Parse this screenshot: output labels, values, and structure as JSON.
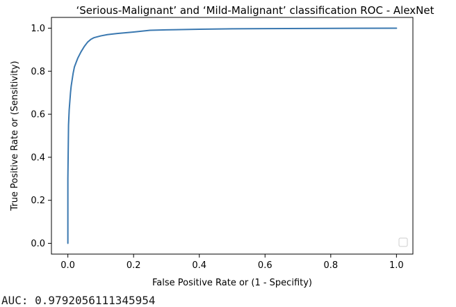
{
  "chart_data": {
    "type": "line",
    "title": "‘Serious-Malignant’ and ‘Mild-Malignant’ classification ROC - AlexNet",
    "xlabel": "False Positive Rate or (1 - Specifity)",
    "ylabel": "True Positive Rate or (Sensitivity)",
    "xlim": [
      -0.05,
      1.05
    ],
    "ylim": [
      -0.05,
      1.05
    ],
    "xticks": [
      "0.0",
      "0.2",
      "0.4",
      "0.6",
      "0.8",
      "1.0"
    ],
    "yticks": [
      "0.0",
      "0.2",
      "0.4",
      "0.6",
      "0.8",
      "1.0"
    ],
    "grid": false,
    "legend": "lower-right (empty)",
    "series": [
      {
        "color": "#3a78b0",
        "x": [
          0.0,
          0.0,
          0.002,
          0.004,
          0.006,
          0.008,
          0.01,
          0.013,
          0.016,
          0.02,
          0.025,
          0.03,
          0.04,
          0.05,
          0.06,
          0.07,
          0.08,
          0.1,
          0.12,
          0.15,
          0.2,
          0.25,
          0.3,
          0.4,
          0.5,
          0.6,
          0.8,
          1.0
        ],
        "y": [
          0.0,
          0.3,
          0.55,
          0.62,
          0.66,
          0.7,
          0.73,
          0.76,
          0.79,
          0.82,
          0.84,
          0.86,
          0.89,
          0.915,
          0.935,
          0.948,
          0.956,
          0.964,
          0.97,
          0.975,
          0.982,
          0.99,
          0.992,
          0.995,
          0.997,
          0.998,
          0.999,
          1.0
        ]
      }
    ]
  },
  "footer": {
    "auc_text": "AUC: 0.9792056111345954"
  }
}
